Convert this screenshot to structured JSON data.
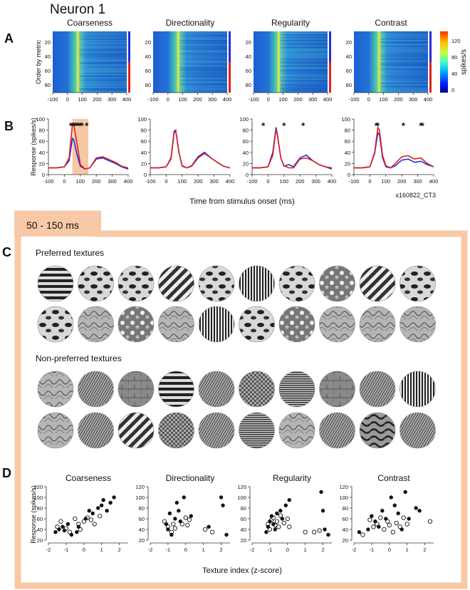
{
  "title": "Neuron 1",
  "panel_letters": [
    "A",
    "B",
    "C",
    "D"
  ],
  "metrics": [
    "Coarseness",
    "Directionality",
    "Regularity",
    "Contrast"
  ],
  "panelA": {
    "ylabel": "Order by metric",
    "yticks": [
      "20",
      "40",
      "60",
      "80"
    ],
    "xticks": [
      "-100",
      "0",
      "100",
      "200",
      "300",
      "400"
    ],
    "colorbar_ticks": [
      "120",
      "80",
      "40",
      "0"
    ],
    "colorbar_label": "spikes/s",
    "colors": {
      "high_group": "#1f2fd6",
      "low_group": "#e02020"
    }
  },
  "panelB": {
    "ylabel": "Response (spikes/s)",
    "yticks": [
      "100",
      "80",
      "60",
      "40",
      "20",
      "0"
    ],
    "xticks": [
      "-100",
      "0",
      "100",
      "200",
      "300",
      "400"
    ],
    "xlabel": "Time from stimulus onset (ms)",
    "cell_id": "x160822_CT3",
    "window_color": "#f6c8a6"
  },
  "window_label": "50 - 150 ms",
  "panelC": {
    "preferred_label": "Preferred textures",
    "nonpreferred_label": "Non-preferred textures"
  },
  "panelD": {
    "ylabel": "Response (spikes/s)",
    "yticks": [
      "120",
      "100",
      "80",
      "60",
      "40",
      "20"
    ],
    "xticks": [
      "-2",
      "-1",
      "0",
      "1",
      "2"
    ],
    "xlabel": "Texture index (z-score)"
  },
  "chart_data": [
    {
      "type": "line",
      "title": "Coarseness",
      "xlabel": "Time from stimulus onset (ms)",
      "ylabel": "Response (spikes/s)",
      "xlim": [
        -100,
        400
      ],
      "ylim": [
        0,
        100
      ],
      "x": [
        -100,
        -50,
        0,
        30,
        50,
        60,
        80,
        100,
        130,
        160,
        200,
        240,
        280,
        320,
        360,
        400
      ],
      "series": [
        {
          "color": "#1f2fd6",
          "values": [
            12,
            12,
            14,
            25,
            65,
            62,
            35,
            15,
            10,
            12,
            28,
            30,
            25,
            20,
            14,
            10
          ]
        },
        {
          "color": "#e02020",
          "values": [
            12,
            12,
            14,
            30,
            90,
            88,
            55,
            18,
            10,
            12,
            30,
            32,
            27,
            22,
            15,
            12
          ]
        }
      ]
    },
    {
      "type": "line",
      "title": "Directionality",
      "xlim": [
        -100,
        400
      ],
      "ylim": [
        0,
        100
      ],
      "x": [
        -100,
        -50,
        0,
        30,
        50,
        60,
        80,
        100,
        130,
        160,
        200,
        240,
        280,
        320,
        360,
        400
      ],
      "series": [
        {
          "color": "#1f2fd6",
          "values": [
            12,
            12,
            14,
            30,
            78,
            80,
            40,
            15,
            12,
            16,
            32,
            40,
            30,
            22,
            15,
            12
          ]
        },
        {
          "color": "#e02020",
          "values": [
            12,
            12,
            14,
            28,
            75,
            78,
            40,
            16,
            12,
            15,
            30,
            38,
            30,
            22,
            15,
            12
          ]
        }
      ]
    },
    {
      "type": "line",
      "title": "Regularity",
      "xlim": [
        -100,
        400
      ],
      "ylim": [
        0,
        100
      ],
      "x": [
        -100,
        -50,
        0,
        30,
        50,
        60,
        80,
        100,
        130,
        160,
        200,
        240,
        280,
        320,
        360,
        400
      ],
      "series": [
        {
          "color": "#1f2fd6",
          "values": [
            12,
            12,
            14,
            40,
            85,
            70,
            30,
            15,
            18,
            14,
            30,
            35,
            25,
            18,
            14,
            10
          ]
        },
        {
          "color": "#e02020",
          "values": [
            12,
            12,
            14,
            35,
            82,
            68,
            30,
            16,
            12,
            12,
            28,
            30,
            25,
            18,
            14,
            12
          ]
        }
      ]
    },
    {
      "type": "line",
      "title": "Contrast",
      "xlim": [
        -100,
        400
      ],
      "ylim": [
        0,
        100
      ],
      "x": [
        -100,
        -50,
        0,
        30,
        50,
        60,
        80,
        100,
        130,
        160,
        200,
        240,
        280,
        320,
        360,
        400
      ],
      "series": [
        {
          "color": "#1f2fd6",
          "values": [
            12,
            12,
            14,
            38,
            75,
            72,
            30,
            14,
            12,
            16,
            26,
            28,
            22,
            24,
            18,
            14
          ]
        },
        {
          "color": "#e02020",
          "values": [
            12,
            12,
            14,
            40,
            85,
            80,
            34,
            16,
            12,
            20,
            32,
            34,
            28,
            30,
            20,
            14
          ]
        }
      ]
    },
    {
      "type": "scatter",
      "title": "Coarseness",
      "xlim": [
        -2,
        2.5
      ],
      "ylim": [
        20,
        120
      ],
      "filled": [
        [
          -1.6,
          35
        ],
        [
          -1.4,
          40
        ],
        [
          -1.2,
          45
        ],
        [
          -1.1,
          38
        ],
        [
          -0.9,
          50
        ],
        [
          -0.7,
          30
        ],
        [
          -0.4,
          35
        ],
        [
          -0.3,
          45
        ],
        [
          0.1,
          60
        ],
        [
          0.3,
          75
        ],
        [
          0.5,
          70
        ],
        [
          0.8,
          80
        ],
        [
          1.0,
          85
        ],
        [
          1.1,
          95
        ],
        [
          1.3,
          75
        ],
        [
          1.5,
          90
        ],
        [
          1.7,
          100
        ]
      ],
      "open": [
        [
          -1.5,
          45
        ],
        [
          -1.3,
          55
        ],
        [
          -1.0,
          42
        ],
        [
          -0.8,
          35
        ],
        [
          -0.5,
          60
        ],
        [
          -0.3,
          50
        ],
        [
          -0.2,
          40
        ],
        [
          0.0,
          55
        ],
        [
          0.2,
          62
        ],
        [
          0.4,
          58
        ],
        [
          0.6,
          50
        ],
        [
          0.9,
          65
        ]
      ]
    },
    {
      "type": "scatter",
      "title": "Directionality",
      "xlim": [
        -2,
        2.5
      ],
      "ylim": [
        20,
        120
      ],
      "filled": [
        [
          -1.1,
          50
        ],
        [
          -1.0,
          40
        ],
        [
          -0.9,
          70
        ],
        [
          -0.8,
          30
        ],
        [
          -0.6,
          60
        ],
        [
          -0.5,
          90
        ],
        [
          -0.4,
          75
        ],
        [
          -0.3,
          55
        ],
        [
          -0.1,
          100
        ],
        [
          0.3,
          65
        ],
        [
          1.3,
          45
        ],
        [
          2.0,
          100
        ],
        [
          2.1,
          85
        ],
        [
          2.3,
          30
        ]
      ],
      "open": [
        [
          -1.2,
          55
        ],
        [
          -1.0,
          45
        ],
        [
          -0.8,
          35
        ],
        [
          -0.7,
          50
        ],
        [
          -0.6,
          42
        ],
        [
          -0.2,
          50
        ],
        [
          0.0,
          62
        ],
        [
          0.1,
          48
        ],
        [
          0.2,
          58
        ],
        [
          1.1,
          40
        ],
        [
          1.5,
          35
        ]
      ]
    },
    {
      "type": "scatter",
      "title": "Regularity",
      "xlim": [
        -2,
        2.5
      ],
      "ylim": [
        20,
        120
      ],
      "filled": [
        [
          -1.2,
          35
        ],
        [
          -1.1,
          45
        ],
        [
          -1.0,
          55
        ],
        [
          -0.9,
          65
        ],
        [
          -0.8,
          50
        ],
        [
          -0.7,
          40
        ],
        [
          -0.6,
          70
        ],
        [
          -0.4,
          75
        ],
        [
          -0.3,
          60
        ],
        [
          -0.1,
          85
        ],
        [
          0.1,
          95
        ],
        [
          1.9,
          110
        ],
        [
          2.0,
          75
        ],
        [
          2.1,
          40
        ],
        [
          2.3,
          30
        ]
      ],
      "open": [
        [
          -1.1,
          50
        ],
        [
          -1.0,
          40
        ],
        [
          -0.9,
          58
        ],
        [
          -0.8,
          62
        ],
        [
          -0.7,
          48
        ],
        [
          -0.6,
          55
        ],
        [
          -0.5,
          45
        ],
        [
          -0.4,
          66
        ],
        [
          -0.2,
          52
        ],
        [
          0.0,
          60
        ],
        [
          0.1,
          45
        ],
        [
          1.0,
          35
        ],
        [
          1.5,
          35
        ],
        [
          1.8,
          38
        ]
      ]
    },
    {
      "type": "scatter",
      "title": "Contrast",
      "xlim": [
        -2,
        2.5
      ],
      "ylim": [
        20,
        120
      ],
      "filled": [
        [
          -1.7,
          35
        ],
        [
          -1.2,
          40
        ],
        [
          -1.0,
          65
        ],
        [
          -0.8,
          55
        ],
        [
          -0.6,
          45
        ],
        [
          -0.4,
          75
        ],
        [
          -0.2,
          60
        ],
        [
          0.1,
          100
        ],
        [
          0.3,
          85
        ],
        [
          0.5,
          70
        ],
        [
          0.7,
          40
        ],
        [
          0.9,
          110
        ],
        [
          1.1,
          60
        ],
        [
          1.5,
          80
        ],
        [
          1.7,
          75
        ]
      ],
      "open": [
        [
          -1.5,
          30
        ],
        [
          -1.1,
          58
        ],
        [
          -0.9,
          45
        ],
        [
          -0.7,
          50
        ],
        [
          -0.5,
          62
        ],
        [
          -0.3,
          40
        ],
        [
          -0.1,
          55
        ],
        [
          0.0,
          48
        ],
        [
          0.2,
          35
        ],
        [
          0.4,
          52
        ],
        [
          0.6,
          45
        ],
        [
          0.8,
          62
        ],
        [
          1.0,
          50
        ],
        [
          2.3,
          55
        ]
      ]
    }
  ]
}
